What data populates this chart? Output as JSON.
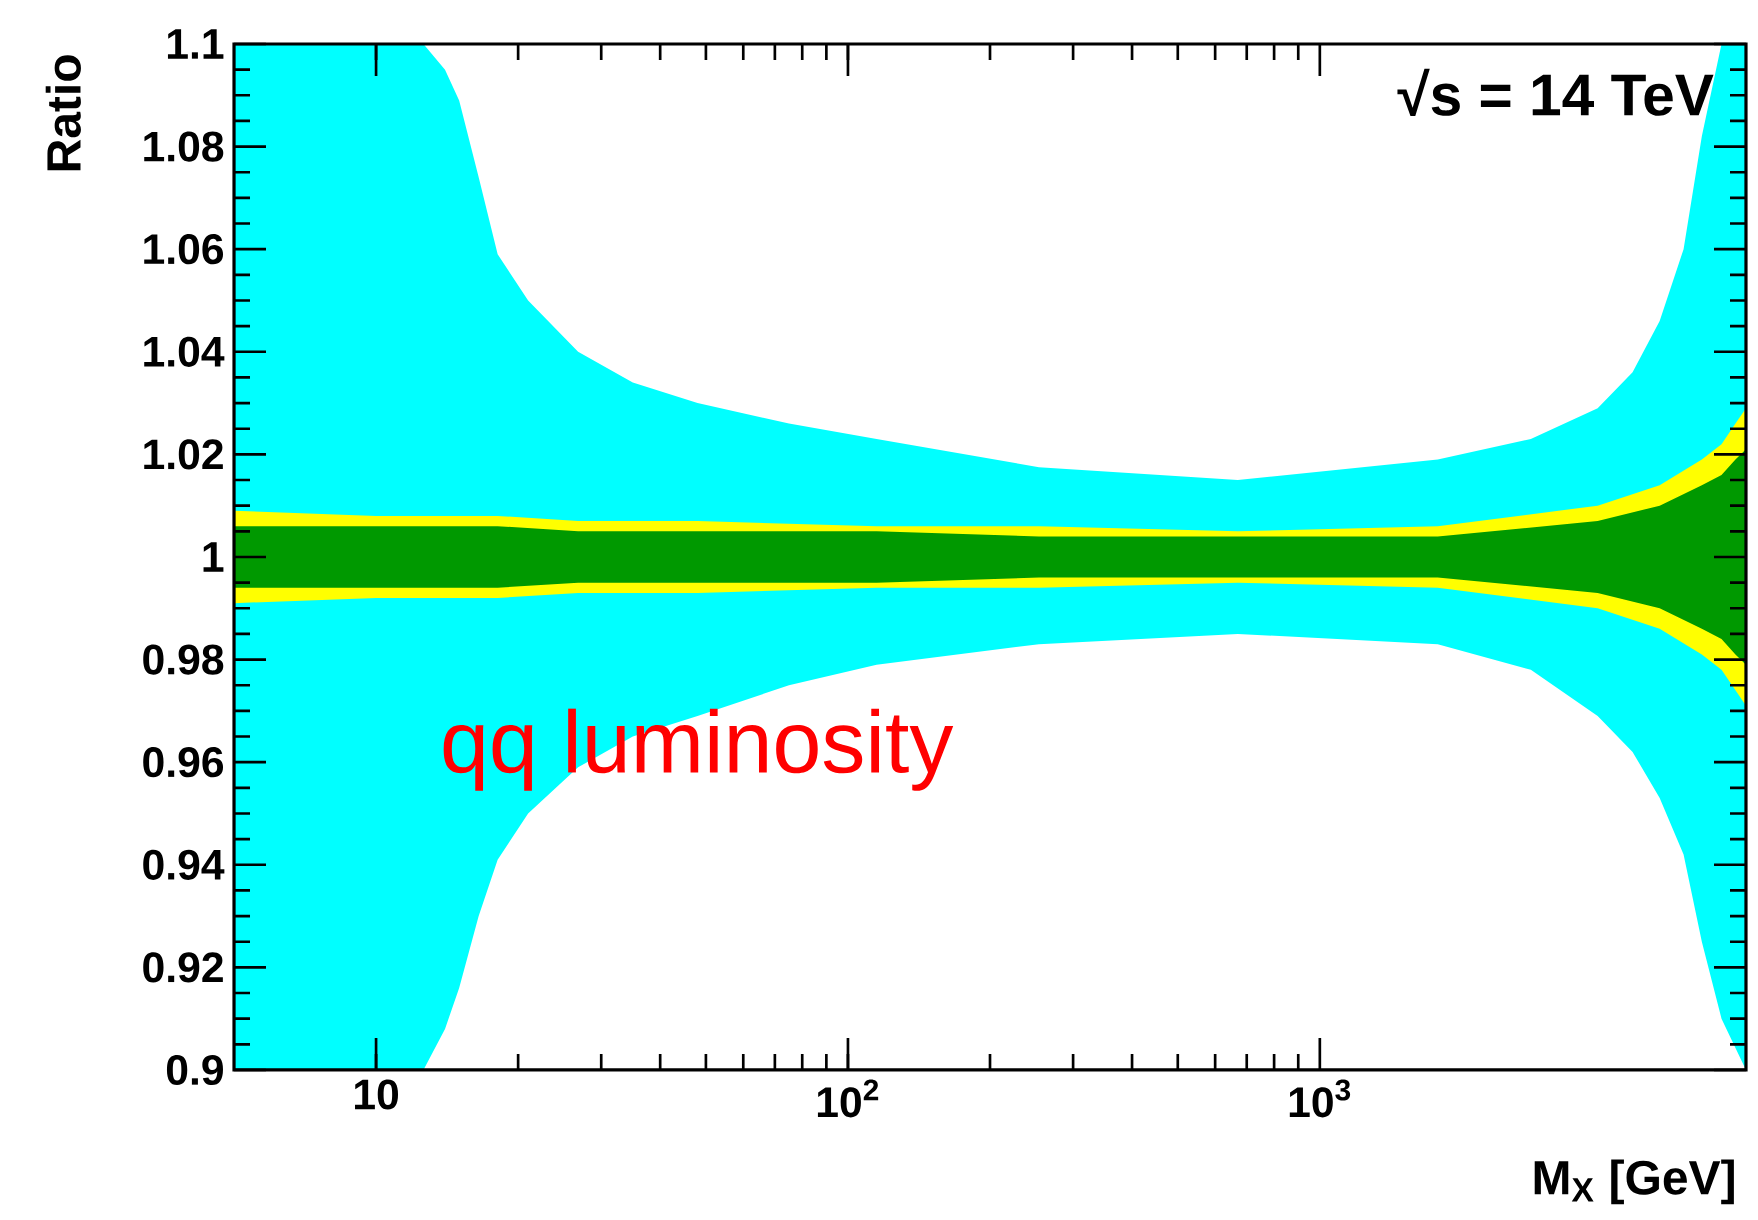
{
  "chart_data": {
    "type": "area",
    "ylabel": "Ratio",
    "xlabel": "M$_{X}$ [GeV]",
    "annotations": [
      "√s = 14 TeV",
      "qq luminosity"
    ],
    "log": "x",
    "grid": false,
    "xlim": [
      5,
      8000
    ],
    "ylim": [
      0.9,
      1.1
    ],
    "xticks": [
      10,
      {
        "value": 100,
        "label": "10$^{2}$"
      },
      {
        "value": 1000,
        "label": "10$^{3}$"
      }
    ],
    "yticks": [
      0.9,
      0.92,
      0.94,
      0.96,
      0.98,
      1,
      1.02,
      1.04,
      1.06,
      1.08,
      1.1
    ],
    "x": [
      5,
      10,
      12.6,
      15,
      18.1,
      26.8,
      48,
      115,
      254,
      670,
      1778,
      3880,
      5250,
      6450,
      7100,
      7600,
      8000
    ],
    "series": [
      {
        "color": "#00ffff",
        "x": [
          5,
          12.6,
          14,
          15,
          16.5,
          18.1,
          21,
          26.8,
          35,
          48,
          75,
          115,
          254,
          670,
          1778,
          2800,
          3880,
          4600,
          5250,
          5900,
          6450,
          7100,
          8000
        ],
        "values": [
          null,
          null,
          null,
          null,
          null,
          null,
          null,
          null,
          null,
          null,
          null,
          null,
          null,
          null,
          null,
          null,
          null,
          null,
          null,
          null,
          null,
          null,
          null
        ],
        "upper": [
          1.1,
          1.1,
          1.095,
          1.089,
          1.074,
          1.059,
          1.05,
          1.04,
          1.034,
          1.03,
          1.026,
          1.023,
          1.0175,
          1.015,
          1.019,
          1.023,
          1.029,
          1.036,
          1.046,
          1.06,
          1.082,
          1.1,
          1.1
        ],
        "lower": [
          0.9,
          0.9,
          0.908,
          0.916,
          0.93,
          0.941,
          0.95,
          0.959,
          0.965,
          0.969,
          0.975,
          0.979,
          0.983,
          0.985,
          0.983,
          0.978,
          0.969,
          0.962,
          0.953,
          0.942,
          0.925,
          0.91,
          0.9
        ]
      },
      {
        "color": "#ffff00",
        "values": [
          null,
          null,
          null,
          null,
          null,
          null,
          null,
          null,
          null,
          null,
          null,
          null,
          null,
          null,
          null,
          null,
          null
        ],
        "upper": [
          1.009,
          1.008,
          1.008,
          1.008,
          1.008,
          1.007,
          1.007,
          1.006,
          1.006,
          1.005,
          1.006,
          1.01,
          1.014,
          1.019,
          1.022,
          1.026,
          1.029
        ],
        "lower": [
          0.991,
          0.992,
          0.992,
          0.992,
          0.992,
          0.993,
          0.993,
          0.994,
          0.994,
          0.995,
          0.994,
          0.99,
          0.986,
          0.981,
          0.978,
          0.974,
          0.971
        ]
      },
      {
        "color": "#009900",
        "values": [
          null,
          null,
          null,
          null,
          null,
          null,
          null,
          null,
          null,
          null,
          null,
          null,
          null,
          null,
          null,
          null,
          null
        ],
        "upper": [
          1.006,
          1.006,
          1.006,
          1.006,
          1.006,
          1.005,
          1.005,
          1.005,
          1.004,
          1.004,
          1.004,
          1.007,
          1.01,
          1.014,
          1.016,
          1.019,
          1.021
        ],
        "lower": [
          0.994,
          0.994,
          0.994,
          0.994,
          0.994,
          0.995,
          0.995,
          0.995,
          0.996,
          0.996,
          0.996,
          0.993,
          0.99,
          0.986,
          0.984,
          0.981,
          0.979
        ]
      }
    ]
  }
}
